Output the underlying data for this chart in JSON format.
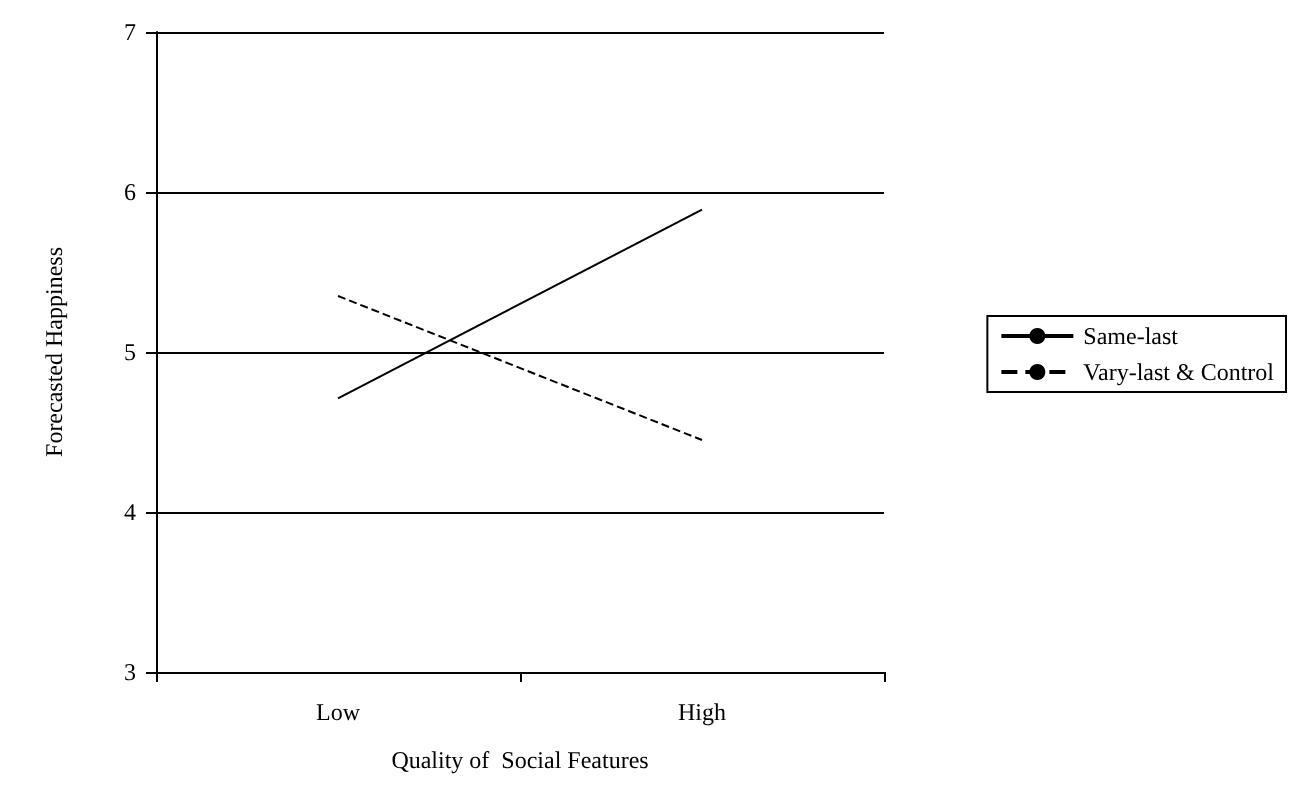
{
  "chart_data": {
    "type": "line",
    "xlabel": "Quality of  Social Features",
    "ylabel": "Forecasted Happiness",
    "categories": [
      "Low",
      "High"
    ],
    "series": [
      {
        "name": "Same-last",
        "color": "#000000",
        "values": [
          4.71,
          5.89
        ],
        "line_style": "solid"
      },
      {
        "name": "Vary-last & Control",
        "color": "#000000",
        "values": [
          5.35,
          4.45
        ],
        "line_style": "dashed"
      }
    ],
    "ylim": [
      3,
      7
    ],
    "yticks": [
      3,
      4,
      5,
      6,
      7
    ],
    "grid": "y",
    "legend": "right",
    "marker": "none"
  }
}
